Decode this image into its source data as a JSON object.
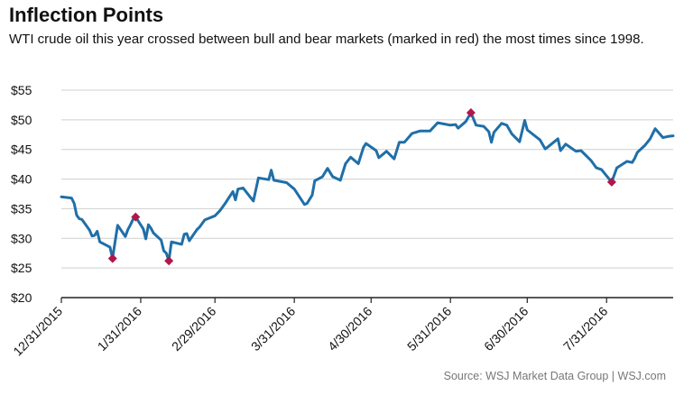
{
  "header": {
    "title": "Inflection Points",
    "subtitle": "WTI crude oil this year crossed between bull and bear markets (marked in red) the most times since 1998."
  },
  "footer": {
    "source": "Source: WSJ Market Data Group  |  WSJ.com"
  },
  "colors": {
    "line": "#1f6fa8",
    "marker": "#b0174a",
    "grid": "#cfcfcf",
    "axis": "#222222"
  },
  "chart_data": {
    "type": "line",
    "title": "Inflection Points",
    "subtitle": "WTI crude oil this year crossed between bull and bear markets (marked in red) the most times since 1998.",
    "ylim": [
      20,
      55
    ],
    "y_ticks": [
      20,
      25,
      30,
      35,
      40,
      45,
      50,
      55
    ],
    "y_tick_labels": [
      "$20",
      "$25",
      "$30",
      "$35",
      "$40",
      "$45",
      "$50",
      "$55"
    ],
    "x_range": [
      "2015-12-31",
      "2016-08-26"
    ],
    "x_tick_dates": [
      "2015-12-31",
      "2016-01-31",
      "2016-02-29",
      "2016-03-31",
      "2016-04-30",
      "2016-05-31",
      "2016-06-30",
      "2016-07-31"
    ],
    "x_tick_labels": [
      "12/31/2015",
      "1/31/2016",
      "2/29/2016",
      "3/31/2016",
      "4/30/2016",
      "5/31/2016",
      "6/30/2016",
      "7/31/2016"
    ],
    "grid": true,
    "series": [
      {
        "points": [
          [
            "2015-12-31",
            37.0
          ],
          [
            "2016-01-04",
            36.8
          ],
          [
            "2016-01-05",
            35.9
          ],
          [
            "2016-01-06",
            33.9
          ],
          [
            "2016-01-07",
            33.3
          ],
          [
            "2016-01-08",
            33.2
          ],
          [
            "2016-01-11",
            31.4
          ],
          [
            "2016-01-12",
            30.4
          ],
          [
            "2016-01-13",
            30.5
          ],
          [
            "2016-01-14",
            31.2
          ],
          [
            "2016-01-15",
            29.4
          ],
          [
            "2016-01-19",
            28.5
          ],
          [
            "2016-01-20",
            26.6
          ],
          [
            "2016-01-21",
            29.5
          ],
          [
            "2016-01-22",
            32.2
          ],
          [
            "2016-01-25",
            30.3
          ],
          [
            "2016-01-26",
            31.5
          ],
          [
            "2016-01-27",
            32.3
          ],
          [
            "2016-01-28",
            33.2
          ],
          [
            "2016-01-29",
            33.6
          ],
          [
            "2016-02-01",
            31.6
          ],
          [
            "2016-02-02",
            29.9
          ],
          [
            "2016-02-03",
            32.3
          ],
          [
            "2016-02-04",
            31.7
          ],
          [
            "2016-02-05",
            30.9
          ],
          [
            "2016-02-08",
            29.7
          ],
          [
            "2016-02-09",
            27.9
          ],
          [
            "2016-02-10",
            27.5
          ],
          [
            "2016-02-11",
            26.2
          ],
          [
            "2016-02-12",
            29.4
          ],
          [
            "2016-02-16",
            29.0
          ],
          [
            "2016-02-17",
            30.7
          ],
          [
            "2016-02-18",
            30.8
          ],
          [
            "2016-02-19",
            29.6
          ],
          [
            "2016-02-22",
            31.5
          ],
          [
            "2016-02-23",
            31.9
          ],
          [
            "2016-02-25",
            33.1
          ],
          [
            "2016-02-29",
            33.8
          ],
          [
            "2016-03-02",
            34.7
          ],
          [
            "2016-03-04",
            35.9
          ],
          [
            "2016-03-07",
            37.9
          ],
          [
            "2016-03-08",
            36.5
          ],
          [
            "2016-03-09",
            38.3
          ],
          [
            "2016-03-11",
            38.5
          ],
          [
            "2016-03-15",
            36.3
          ],
          [
            "2016-03-17",
            40.2
          ],
          [
            "2016-03-21",
            39.9
          ],
          [
            "2016-03-22",
            41.5
          ],
          [
            "2016-03-23",
            39.8
          ],
          [
            "2016-03-28",
            39.4
          ],
          [
            "2016-03-31",
            38.3
          ],
          [
            "2016-04-04",
            35.7
          ],
          [
            "2016-04-05",
            35.9
          ],
          [
            "2016-04-07",
            37.3
          ],
          [
            "2016-04-08",
            39.7
          ],
          [
            "2016-04-11",
            40.4
          ],
          [
            "2016-04-13",
            41.8
          ],
          [
            "2016-04-15",
            40.4
          ],
          [
            "2016-04-18",
            39.8
          ],
          [
            "2016-04-20",
            42.6
          ],
          [
            "2016-04-22",
            43.7
          ],
          [
            "2016-04-25",
            42.6
          ],
          [
            "2016-04-27",
            45.3
          ],
          [
            "2016-04-28",
            46.0
          ],
          [
            "2016-05-02",
            44.8
          ],
          [
            "2016-05-03",
            43.6
          ],
          [
            "2016-05-05",
            44.3
          ],
          [
            "2016-05-06",
            44.7
          ],
          [
            "2016-05-09",
            43.4
          ],
          [
            "2016-05-11",
            46.2
          ],
          [
            "2016-05-13",
            46.2
          ],
          [
            "2016-05-16",
            47.7
          ],
          [
            "2016-05-19",
            48.1
          ],
          [
            "2016-05-23",
            48.1
          ],
          [
            "2016-05-26",
            49.5
          ],
          [
            "2016-05-31",
            49.1
          ],
          [
            "2016-06-02",
            49.2
          ],
          [
            "2016-06-03",
            48.6
          ],
          [
            "2016-06-06",
            49.7
          ],
          [
            "2016-06-08",
            51.2
          ],
          [
            "2016-06-10",
            49.1
          ],
          [
            "2016-06-13",
            48.9
          ],
          [
            "2016-06-15",
            48.0
          ],
          [
            "2016-06-16",
            46.2
          ],
          [
            "2016-06-17",
            47.9
          ],
          [
            "2016-06-20",
            49.4
          ],
          [
            "2016-06-22",
            49.1
          ],
          [
            "2016-06-24",
            47.6
          ],
          [
            "2016-06-27",
            46.3
          ],
          [
            "2016-06-29",
            49.9
          ],
          [
            "2016-06-30",
            48.3
          ],
          [
            "2016-07-05",
            46.6
          ],
          [
            "2016-07-07",
            45.1
          ],
          [
            "2016-07-08",
            45.4
          ],
          [
            "2016-07-12",
            46.8
          ],
          [
            "2016-07-13",
            44.8
          ],
          [
            "2016-07-15",
            45.9
          ],
          [
            "2016-07-19",
            44.7
          ],
          [
            "2016-07-21",
            44.8
          ],
          [
            "2016-07-25",
            43.1
          ],
          [
            "2016-07-27",
            41.9
          ],
          [
            "2016-07-29",
            41.6
          ],
          [
            "2016-08-02",
            39.5
          ],
          [
            "2016-08-04",
            41.9
          ],
          [
            "2016-08-08",
            43.0
          ],
          [
            "2016-08-10",
            42.8
          ],
          [
            "2016-08-11",
            43.5
          ],
          [
            "2016-08-12",
            44.5
          ],
          [
            "2016-08-15",
            45.7
          ],
          [
            "2016-08-17",
            46.8
          ],
          [
            "2016-08-19",
            48.5
          ],
          [
            "2016-08-22",
            47.0
          ],
          [
            "2016-08-24",
            47.2
          ],
          [
            "2016-08-26",
            47.3
          ]
        ]
      }
    ],
    "markers": [
      [
        "2016-01-20",
        26.6
      ],
      [
        "2016-01-29",
        33.6
      ],
      [
        "2016-02-11",
        26.2
      ],
      [
        "2016-06-08",
        51.2
      ],
      [
        "2016-08-02",
        39.5
      ]
    ]
  }
}
